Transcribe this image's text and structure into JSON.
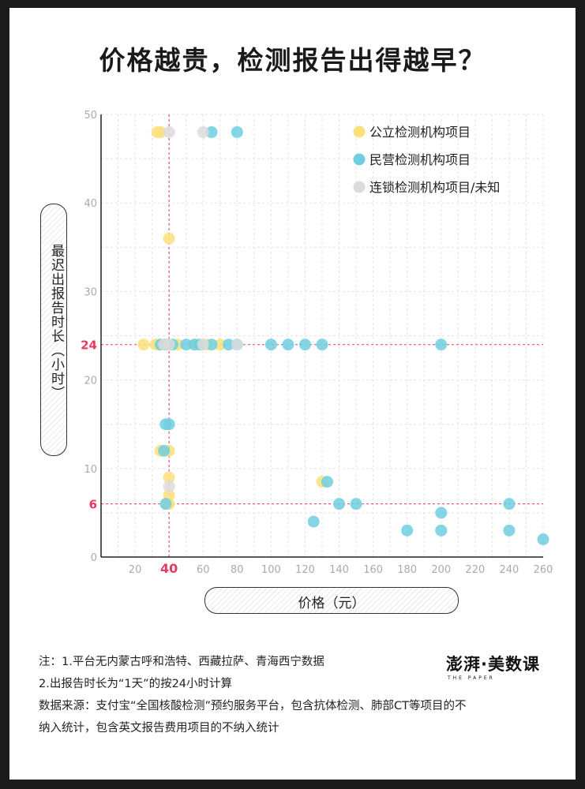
{
  "title": "价格越贵，检测报告出得越早？",
  "axis": {
    "ylabel": "最迟出报告时长（小时）",
    "xlabel": "价格（元）"
  },
  "colors": {
    "public": "#fbe07c",
    "private": "#6fcfe0",
    "chain": "#dcdcdc",
    "reference": "#e8395e",
    "overlap": "#6cc7b0"
  },
  "chart_data": {
    "type": "scatter",
    "title": "价格越贵，检测报告出得越早？",
    "xlabel": "价格（元）",
    "ylabel": "最迟出报告时长（小时）",
    "xlim": [
      0,
      260
    ],
    "ylim": [
      0,
      50
    ],
    "xticks": [
      20,
      40,
      60,
      80,
      100,
      120,
      140,
      160,
      180,
      200,
      220,
      240,
      260
    ],
    "yticks": [
      0,
      10,
      20,
      30,
      40,
      50
    ],
    "highlight_x": 40,
    "highlight_y": [
      6,
      24
    ],
    "grid": true,
    "legend_position": "top-right",
    "series": [
      {
        "name": "公立检测机构项目",
        "color": "#fbe07c",
        "points": [
          [
            33,
            48
          ],
          [
            35,
            48
          ],
          [
            40,
            36
          ],
          [
            25,
            24
          ],
          [
            32,
            24
          ],
          [
            34,
            24
          ],
          [
            36,
            24
          ],
          [
            38,
            24
          ],
          [
            45,
            24
          ],
          [
            55,
            24
          ],
          [
            60,
            24
          ],
          [
            62,
            24
          ],
          [
            70,
            24
          ],
          [
            35,
            12
          ],
          [
            40,
            12
          ],
          [
            40,
            9
          ],
          [
            40,
            7
          ],
          [
            40,
            6
          ],
          [
            39,
            6
          ],
          [
            130,
            8.5
          ]
        ]
      },
      {
        "name": "民营检测机构项目",
        "color": "#6fcfe0",
        "points": [
          [
            65,
            48
          ],
          [
            80,
            48
          ],
          [
            35,
            24
          ],
          [
            38,
            24
          ],
          [
            42,
            24
          ],
          [
            50,
            24
          ],
          [
            55,
            24
          ],
          [
            58,
            24
          ],
          [
            65,
            24
          ],
          [
            75,
            24
          ],
          [
            80,
            24
          ],
          [
            100,
            24
          ],
          [
            110,
            24
          ],
          [
            120,
            24
          ],
          [
            130,
            24
          ],
          [
            200,
            24
          ],
          [
            38,
            15
          ],
          [
            40,
            15
          ],
          [
            37,
            12
          ],
          [
            38,
            6
          ],
          [
            133,
            8.5
          ],
          [
            140,
            6
          ],
          [
            150,
            6
          ],
          [
            240,
            6
          ],
          [
            125,
            4
          ],
          [
            180,
            3
          ],
          [
            200,
            5
          ],
          [
            200,
            3
          ],
          [
            240,
            3
          ],
          [
            260,
            2
          ]
        ]
      },
      {
        "name": "连锁检测机构项目/未知",
        "color": "#dcdcdc",
        "points": [
          [
            40,
            48
          ],
          [
            60,
            48
          ],
          [
            37,
            24
          ],
          [
            40,
            24
          ],
          [
            60,
            24
          ],
          [
            80,
            24
          ],
          [
            40,
            8
          ]
        ]
      }
    ]
  },
  "notes": {
    "line1": "注：1.平台无内蒙古呼和浩特、西藏拉萨、青海西宁数据",
    "line2": "2.出报告时长为“1天”的按24小时计算",
    "line3": "数据来源：支付宝“全国核酸检测”预约服务平台，包含抗体检测、肺部CT等项目的不",
    "line4": "纳入统计，包含英文报告费用项目的不纳入统计"
  },
  "logo": {
    "text": "澎湃·美数课",
    "sub": "THE PAPER"
  }
}
